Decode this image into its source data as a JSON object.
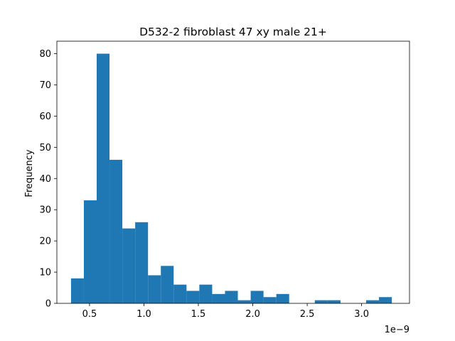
{
  "chart_data": {
    "type": "bar",
    "title": "D532-2 fibroblast 47 xy male 21+",
    "xlabel": "",
    "ylabel": "Frequency",
    "x_offset_label": "1e−9",
    "x_scale_note": "values in units of 1e-9",
    "bin_edges": [
      0.33,
      0.4479,
      0.5658,
      0.6837,
      0.8016,
      0.9195,
      1.0374,
      1.1553,
      1.2732,
      1.3911,
      1.509,
      1.6269,
      1.7448,
      1.8627,
      1.9806,
      2.0985,
      2.2164,
      2.3343,
      2.4522,
      2.5701,
      2.688,
      2.8059,
      2.9238,
      3.0417,
      3.1596,
      3.2775
    ],
    "values": [
      8,
      33,
      80,
      46,
      24,
      26,
      9,
      12,
      6,
      4,
      6,
      3,
      4,
      1,
      4,
      2,
      3,
      0,
      0,
      1,
      1,
      0,
      0,
      1,
      2
    ],
    "xlim": [
      0.2,
      3.44
    ],
    "ylim": [
      0,
      84
    ],
    "x_ticks": [
      0.5,
      1.0,
      1.5,
      2.0,
      2.5,
      3.0
    ],
    "x_tick_labels": [
      "0.5",
      "1.0",
      "1.5",
      "2.0",
      "2.5",
      "3.0"
    ],
    "y_ticks": [
      0,
      10,
      20,
      30,
      40,
      50,
      60,
      70,
      80
    ],
    "y_tick_labels": [
      "0",
      "10",
      "20",
      "30",
      "40",
      "50",
      "60",
      "70",
      "80"
    ],
    "grid": false,
    "bar_color": "#1f77b4"
  }
}
